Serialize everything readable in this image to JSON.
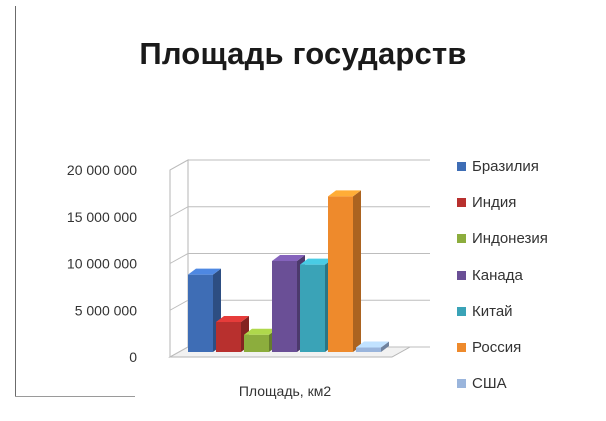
{
  "chart_data": {
    "type": "bar",
    "title": "Площадь государств",
    "xlabel": "Площадь, км2",
    "ylabel": "",
    "ylim": [
      0,
      20000000
    ],
    "yticks": [
      0,
      5000000,
      10000000,
      15000000,
      20000000
    ],
    "ytick_labels": [
      "0",
      "5 000 000",
      "10 000 000",
      "15 000 000",
      "20 000 000"
    ],
    "categories": [
      "Площадь, км2"
    ],
    "series": [
      {
        "name": "Бразилия",
        "values": [
          8500000
        ],
        "color": "#3e6db5"
      },
      {
        "name": "Индия",
        "values": [
          3300000
        ],
        "color": "#b8302e"
      },
      {
        "name": "Индонезия",
        "values": [
          1900000
        ],
        "color": "#8cad3d"
      },
      {
        "name": "Канада",
        "values": [
          10000000
        ],
        "color": "#6a4f96"
      },
      {
        "name": "Китай",
        "values": [
          9600000
        ],
        "color": "#3aa3b7"
      },
      {
        "name": "Россия",
        "values": [
          17100000
        ],
        "color": "#ee8a2c"
      },
      {
        "name": "США",
        "values": [
          500000
        ],
        "color": "#9ab5dc"
      }
    ],
    "grid": true,
    "legend_position": "right",
    "style": "3d-clustered-column"
  }
}
